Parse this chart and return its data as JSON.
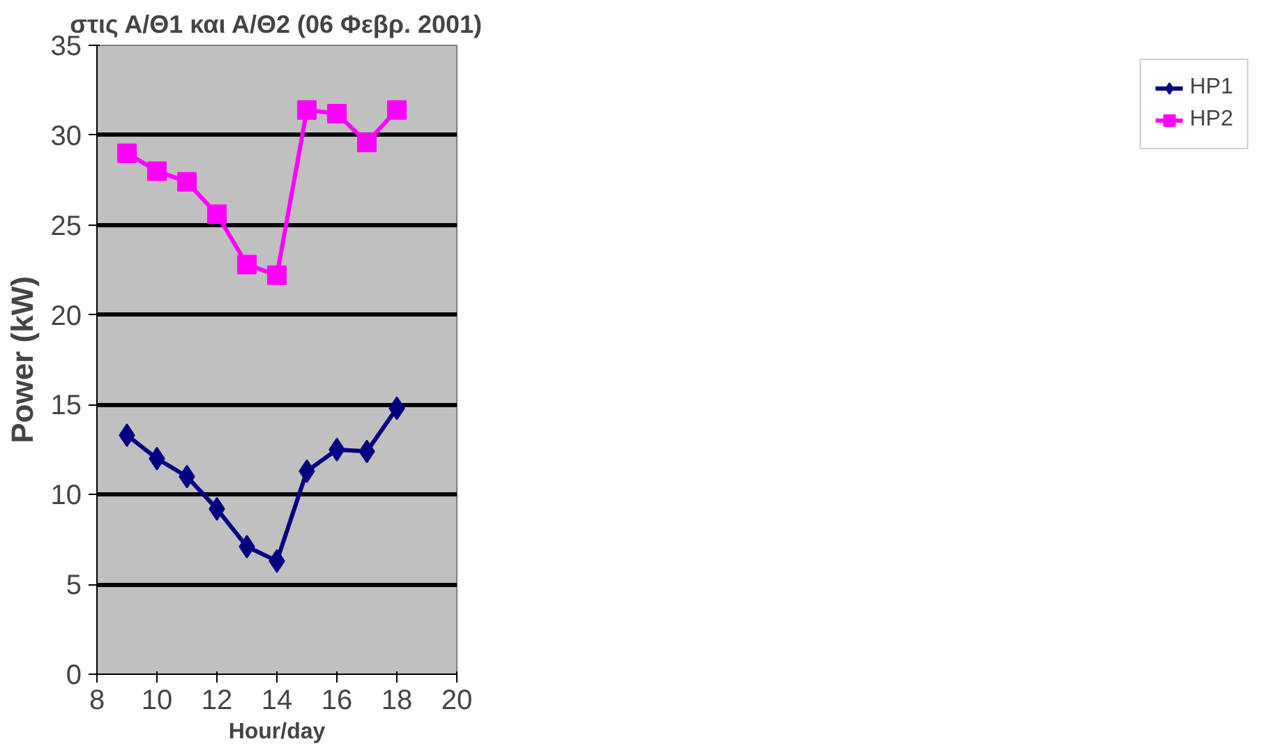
{
  "chart_data": {
    "type": "line",
    "title": "στις Α/Θ1 και Α/Θ2 (06 Φεβρ. 2001)",
    "xlabel": "Hour/day",
    "ylabel": "Power (kW)",
    "x": [
      9,
      10,
      11,
      12,
      13,
      14,
      15,
      16,
      17,
      18
    ],
    "series": [
      {
        "name": "HP1",
        "color": "#000080",
        "marker": "diamond",
        "values": [
          13.3,
          12.0,
          11.0,
          9.2,
          7.1,
          6.3,
          11.3,
          12.5,
          12.4,
          14.8
        ]
      },
      {
        "name": "HP2",
        "color": "#ff00ff",
        "marker": "square",
        "values": [
          29.0,
          28.0,
          27.4,
          25.6,
          22.8,
          22.2,
          31.4,
          31.2,
          29.6,
          31.4
        ]
      }
    ],
    "xlim": [
      8,
      20
    ],
    "xticks": [
      8,
      10,
      12,
      14,
      16,
      18,
      20
    ],
    "ylim": [
      0,
      35
    ],
    "yticks": [
      0,
      5,
      10,
      15,
      20,
      25,
      30,
      35
    ],
    "grid": "y",
    "legend": "right",
    "line_style": "solid"
  }
}
